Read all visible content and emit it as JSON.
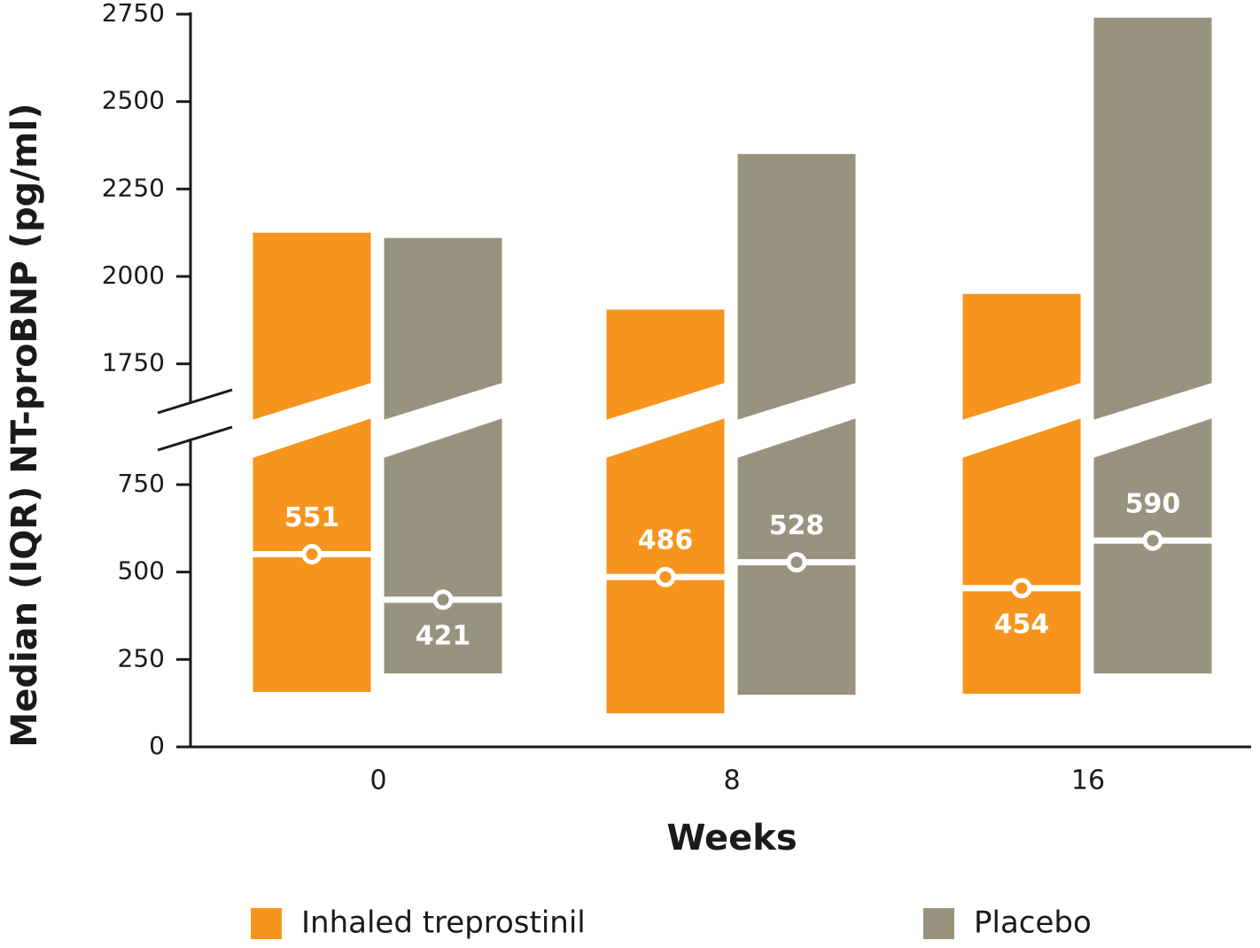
{
  "chart_data": {
    "type": "floating_bar",
    "y_label": "Median (IQR) NT-proBNP (pg/ml)",
    "x_label": "Weeks",
    "categories": [
      "0",
      "8",
      "16"
    ],
    "series": [
      {
        "name": "Inhaled treprostinil",
        "color": "#f7941d",
        "values": [
          551,
          486,
          454
        ],
        "q1": [
          157,
          96,
          152
        ],
        "q3": [
          2125,
          1905,
          1950
        ]
      },
      {
        "name": "Placebo",
        "color": "#97937e",
        "values": [
          421,
          528,
          590
        ],
        "q1": [
          210,
          149,
          210
        ],
        "q3": [
          2110,
          2350,
          2740
        ]
      }
    ],
    "ylim": [
      0,
      2750
    ],
    "axis_break": [
      850,
      1700
    ],
    "yticks": [
      0,
      250,
      500,
      750,
      1750,
      2000,
      2250,
      2500,
      2750
    ]
  }
}
